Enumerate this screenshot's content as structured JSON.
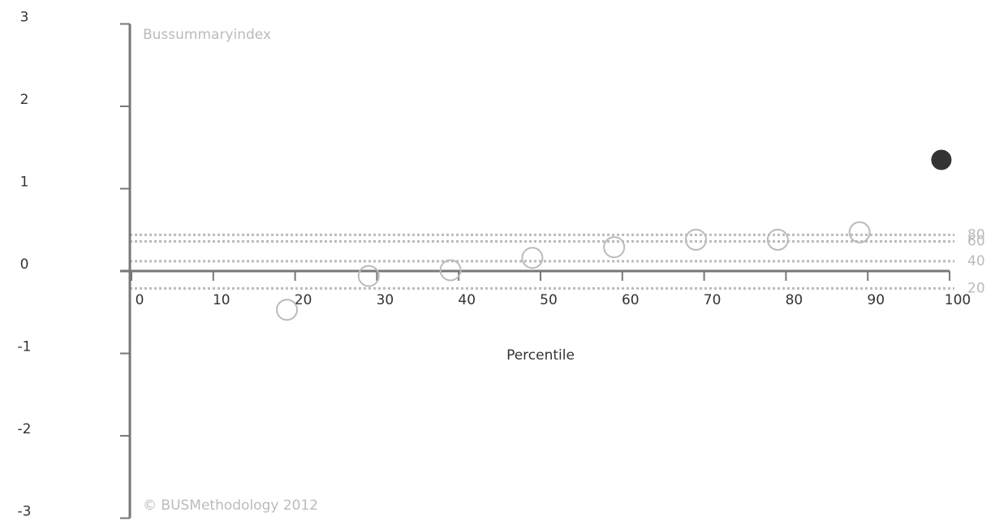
{
  "chart_data": {
    "type": "scatter",
    "title": "Bussummaryindex",
    "x_label": "Percentile",
    "footer": "© BUSMethodology 2012",
    "xlim": [
      0,
      100
    ],
    "xticks": [
      0,
      10,
      20,
      30,
      40,
      50,
      60,
      70,
      80,
      90,
      100
    ],
    "ylim": [
      -3,
      3
    ],
    "yticks": [
      -3,
      -2,
      -1,
      0,
      1,
      2,
      3
    ],
    "series": [
      {
        "color": "#bbbbbb",
        "marker": "open",
        "x": [
          19,
          29,
          39,
          49,
          59,
          69,
          79,
          89
        ],
        "values": [
          -0.47,
          -0.06,
          0.01,
          0.16,
          0.29,
          0.38,
          0.38,
          0.47
        ]
      },
      {
        "color": "#333333",
        "marker": "filled",
        "x": [
          99
        ],
        "values": [
          1.35
        ]
      }
    ],
    "reference_lines": [
      {
        "value": 0.44,
        "label": "80"
      },
      {
        "value": 0.36,
        "label": "60"
      },
      {
        "value": 0.12,
        "label": "40"
      },
      {
        "value": -0.21,
        "label": "20"
      }
    ],
    "reference_color": "#bbbbbb"
  }
}
